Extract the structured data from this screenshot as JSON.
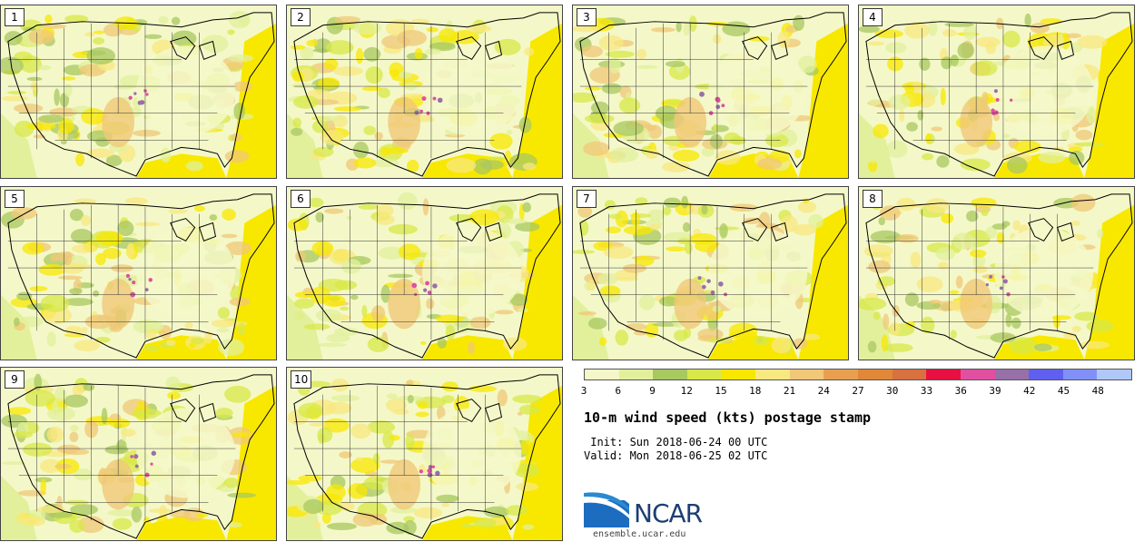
{
  "panels": [
    {
      "num": "1"
    },
    {
      "num": "2"
    },
    {
      "num": "3"
    },
    {
      "num": "4"
    },
    {
      "num": "5"
    },
    {
      "num": "6"
    },
    {
      "num": "7"
    },
    {
      "num": "8"
    },
    {
      "num": "9"
    },
    {
      "num": "10"
    }
  ],
  "colorbar": {
    "ticks": [
      "3",
      "6",
      "9",
      "12",
      "15",
      "18",
      "21",
      "24",
      "27",
      "30",
      "33",
      "36",
      "39",
      "42",
      "45",
      "48"
    ],
    "colors": [
      "#f4f8c8",
      "#e2f09c",
      "#a8c860",
      "#d8e848",
      "#f8e800",
      "#f8e880",
      "#f0c878",
      "#e8a050",
      "#e08838",
      "#d87040",
      "#e81040",
      "#e050a0",
      "#9870a8",
      "#6060f0",
      "#8090f8",
      "#b0c8f8"
    ]
  },
  "title": "10-m wind speed (kts) postage stamp",
  "init": " Init: Sun 2018-06-24 00 UTC",
  "valid": "Valid: Mon 2018-06-25 02 UTC",
  "logo": {
    "text": "NCAR",
    "url": "ensemble.ucar.edu",
    "brand_colors": [
      "#1c3e72",
      "#2a8ad0"
    ]
  }
}
